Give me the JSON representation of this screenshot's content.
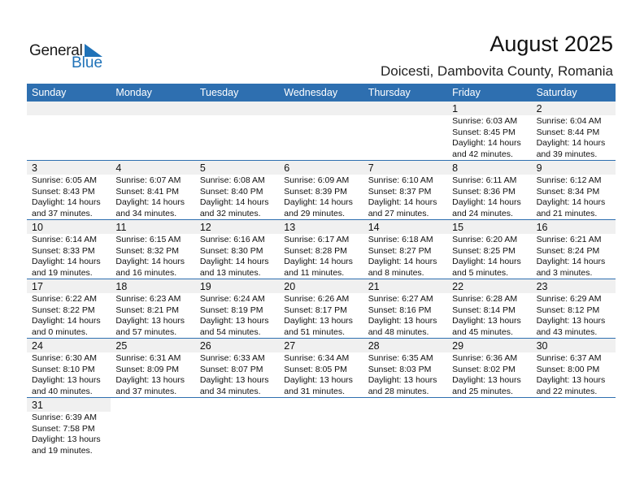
{
  "logo": {
    "text1": "General",
    "text2": "Blue"
  },
  "title": "August 2025",
  "subtitle": "Doicesti, Dambovita County, Romania",
  "colors": {
    "header": "#2e6fb0",
    "brand": "#1f72b8",
    "day_bar": "#f0f0f0"
  },
  "weekdays": [
    "Sunday",
    "Monday",
    "Tuesday",
    "Wednesday",
    "Thursday",
    "Friday",
    "Saturday"
  ],
  "weeks": [
    [
      null,
      null,
      null,
      null,
      null,
      {
        "day": "1",
        "sunrise": "Sunrise: 6:03 AM",
        "sunset": "Sunset: 8:45 PM",
        "daylight1": "Daylight: 14 hours",
        "daylight2": "and 42 minutes."
      },
      {
        "day": "2",
        "sunrise": "Sunrise: 6:04 AM",
        "sunset": "Sunset: 8:44 PM",
        "daylight1": "Daylight: 14 hours",
        "daylight2": "and 39 minutes."
      }
    ],
    [
      {
        "day": "3",
        "sunrise": "Sunrise: 6:05 AM",
        "sunset": "Sunset: 8:43 PM",
        "daylight1": "Daylight: 14 hours",
        "daylight2": "and 37 minutes."
      },
      {
        "day": "4",
        "sunrise": "Sunrise: 6:07 AM",
        "sunset": "Sunset: 8:41 PM",
        "daylight1": "Daylight: 14 hours",
        "daylight2": "and 34 minutes."
      },
      {
        "day": "5",
        "sunrise": "Sunrise: 6:08 AM",
        "sunset": "Sunset: 8:40 PM",
        "daylight1": "Daylight: 14 hours",
        "daylight2": "and 32 minutes."
      },
      {
        "day": "6",
        "sunrise": "Sunrise: 6:09 AM",
        "sunset": "Sunset: 8:39 PM",
        "daylight1": "Daylight: 14 hours",
        "daylight2": "and 29 minutes."
      },
      {
        "day": "7",
        "sunrise": "Sunrise: 6:10 AM",
        "sunset": "Sunset: 8:37 PM",
        "daylight1": "Daylight: 14 hours",
        "daylight2": "and 27 minutes."
      },
      {
        "day": "8",
        "sunrise": "Sunrise: 6:11 AM",
        "sunset": "Sunset: 8:36 PM",
        "daylight1": "Daylight: 14 hours",
        "daylight2": "and 24 minutes."
      },
      {
        "day": "9",
        "sunrise": "Sunrise: 6:12 AM",
        "sunset": "Sunset: 8:34 PM",
        "daylight1": "Daylight: 14 hours",
        "daylight2": "and 21 minutes."
      }
    ],
    [
      {
        "day": "10",
        "sunrise": "Sunrise: 6:14 AM",
        "sunset": "Sunset: 8:33 PM",
        "daylight1": "Daylight: 14 hours",
        "daylight2": "and 19 minutes."
      },
      {
        "day": "11",
        "sunrise": "Sunrise: 6:15 AM",
        "sunset": "Sunset: 8:32 PM",
        "daylight1": "Daylight: 14 hours",
        "daylight2": "and 16 minutes."
      },
      {
        "day": "12",
        "sunrise": "Sunrise: 6:16 AM",
        "sunset": "Sunset: 8:30 PM",
        "daylight1": "Daylight: 14 hours",
        "daylight2": "and 13 minutes."
      },
      {
        "day": "13",
        "sunrise": "Sunrise: 6:17 AM",
        "sunset": "Sunset: 8:28 PM",
        "daylight1": "Daylight: 14 hours",
        "daylight2": "and 11 minutes."
      },
      {
        "day": "14",
        "sunrise": "Sunrise: 6:18 AM",
        "sunset": "Sunset: 8:27 PM",
        "daylight1": "Daylight: 14 hours",
        "daylight2": "and 8 minutes."
      },
      {
        "day": "15",
        "sunrise": "Sunrise: 6:20 AM",
        "sunset": "Sunset: 8:25 PM",
        "daylight1": "Daylight: 14 hours",
        "daylight2": "and 5 minutes."
      },
      {
        "day": "16",
        "sunrise": "Sunrise: 6:21 AM",
        "sunset": "Sunset: 8:24 PM",
        "daylight1": "Daylight: 14 hours",
        "daylight2": "and 3 minutes."
      }
    ],
    [
      {
        "day": "17",
        "sunrise": "Sunrise: 6:22 AM",
        "sunset": "Sunset: 8:22 PM",
        "daylight1": "Daylight: 14 hours",
        "daylight2": "and 0 minutes."
      },
      {
        "day": "18",
        "sunrise": "Sunrise: 6:23 AM",
        "sunset": "Sunset: 8:21 PM",
        "daylight1": "Daylight: 13 hours",
        "daylight2": "and 57 minutes."
      },
      {
        "day": "19",
        "sunrise": "Sunrise: 6:24 AM",
        "sunset": "Sunset: 8:19 PM",
        "daylight1": "Daylight: 13 hours",
        "daylight2": "and 54 minutes."
      },
      {
        "day": "20",
        "sunrise": "Sunrise: 6:26 AM",
        "sunset": "Sunset: 8:17 PM",
        "daylight1": "Daylight: 13 hours",
        "daylight2": "and 51 minutes."
      },
      {
        "day": "21",
        "sunrise": "Sunrise: 6:27 AM",
        "sunset": "Sunset: 8:16 PM",
        "daylight1": "Daylight: 13 hours",
        "daylight2": "and 48 minutes."
      },
      {
        "day": "22",
        "sunrise": "Sunrise: 6:28 AM",
        "sunset": "Sunset: 8:14 PM",
        "daylight1": "Daylight: 13 hours",
        "daylight2": "and 45 minutes."
      },
      {
        "day": "23",
        "sunrise": "Sunrise: 6:29 AM",
        "sunset": "Sunset: 8:12 PM",
        "daylight1": "Daylight: 13 hours",
        "daylight2": "and 43 minutes."
      }
    ],
    [
      {
        "day": "24",
        "sunrise": "Sunrise: 6:30 AM",
        "sunset": "Sunset: 8:10 PM",
        "daylight1": "Daylight: 13 hours",
        "daylight2": "and 40 minutes."
      },
      {
        "day": "25",
        "sunrise": "Sunrise: 6:31 AM",
        "sunset": "Sunset: 8:09 PM",
        "daylight1": "Daylight: 13 hours",
        "daylight2": "and 37 minutes."
      },
      {
        "day": "26",
        "sunrise": "Sunrise: 6:33 AM",
        "sunset": "Sunset: 8:07 PM",
        "daylight1": "Daylight: 13 hours",
        "daylight2": "and 34 minutes."
      },
      {
        "day": "27",
        "sunrise": "Sunrise: 6:34 AM",
        "sunset": "Sunset: 8:05 PM",
        "daylight1": "Daylight: 13 hours",
        "daylight2": "and 31 minutes."
      },
      {
        "day": "28",
        "sunrise": "Sunrise: 6:35 AM",
        "sunset": "Sunset: 8:03 PM",
        "daylight1": "Daylight: 13 hours",
        "daylight2": "and 28 minutes."
      },
      {
        "day": "29",
        "sunrise": "Sunrise: 6:36 AM",
        "sunset": "Sunset: 8:02 PM",
        "daylight1": "Daylight: 13 hours",
        "daylight2": "and 25 minutes."
      },
      {
        "day": "30",
        "sunrise": "Sunrise: 6:37 AM",
        "sunset": "Sunset: 8:00 PM",
        "daylight1": "Daylight: 13 hours",
        "daylight2": "and 22 minutes."
      }
    ],
    [
      {
        "day": "31",
        "sunrise": "Sunrise: 6:39 AM",
        "sunset": "Sunset: 7:58 PM",
        "daylight1": "Daylight: 13 hours",
        "daylight2": "and 19 minutes."
      },
      "blank",
      "blank",
      "blank",
      "blank",
      "blank",
      "blank"
    ]
  ]
}
